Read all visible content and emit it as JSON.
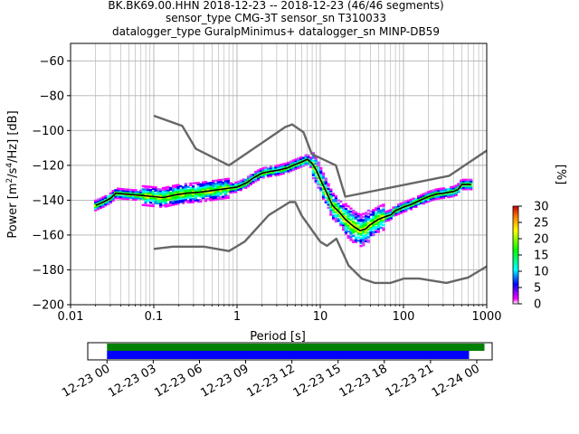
{
  "header": {
    "line1": "BK.BK69.00.HHN   2018-12-23 -- 2018-12-23  (46/46 segments)",
    "line2": "sensor_type CMG-3T sensor_sn T310033",
    "line3": "datalogger_type GuralpMinimus+ datalogger_sn MINP-DB59"
  },
  "chart_data": [
    {
      "type": "heatmap",
      "title": "",
      "xlabel": "Period [s]",
      "ylabel": "Power [m²/s⁴/Hz] [dB]",
      "x_scale": "log",
      "xlim": [
        0.01,
        1000
      ],
      "ylim": [
        -200,
        -50
      ],
      "x_ticks": [
        "0.01",
        "0.1",
        "1",
        "10",
        "100",
        "1000"
      ],
      "y_ticks": [
        "-200",
        "-180",
        "-160",
        "-140",
        "-120",
        "-100",
        "-80",
        "-60"
      ],
      "grid": true,
      "colorbar": {
        "label": "[%]",
        "range": [
          0,
          30
        ],
        "ticks": [
          "0",
          "5",
          "10",
          "15",
          "20",
          "25",
          "30"
        ]
      },
      "colors": {
        "noise_model": "#666666",
        "mean": "#000000"
      },
      "series": [
        {
          "key": "nhnm",
          "x": [
            0.1,
            0.22,
            0.32,
            0.8,
            3.8,
            4.6,
            6.3,
            7.9,
            15.4,
            20,
            354.8,
            1000
          ],
          "y": [
            -91.5,
            -97.4,
            -110.5,
            -120,
            -98,
            -96.5,
            -101,
            -113.5,
            -120,
            -138,
            -126,
            -111.5
          ]
        },
        {
          "key": "nlnm",
          "x": [
            0.1,
            0.17,
            0.4,
            0.8,
            1.24,
            2.4,
            4.3,
            5,
            6,
            10,
            12,
            15.6,
            21.9,
            31.6,
            45,
            70,
            101,
            154,
            328,
            600,
            1000
          ],
          "y": [
            -168,
            -166.7,
            -166.7,
            -169.2,
            -163.7,
            -148.6,
            -141.1,
            -141.1,
            -149,
            -163.8,
            -166.2,
            -162.1,
            -177.5,
            -185,
            -187.5,
            -187.5,
            -185,
            -185,
            -187.5,
            -184.4,
            -178
          ]
        },
        {
          "key": "mean",
          "x": [
            0.02,
            0.025,
            0.03,
            0.035,
            0.045,
            0.06,
            0.08,
            0.1,
            0.13,
            0.18,
            0.25,
            0.35,
            0.5,
            0.7,
            1,
            1.3,
            1.6,
            2,
            2.5,
            3,
            4,
            5,
            6,
            7,
            8,
            9,
            10,
            12,
            14,
            17,
            20,
            25,
            30,
            35,
            40,
            50,
            60,
            70,
            80,
            100,
            130,
            160,
            200,
            250,
            300,
            350,
            400,
            450,
            500,
            550,
            600,
            650
          ],
          "y": [
            -143,
            -141,
            -139,
            -136,
            -136.5,
            -137,
            -137.5,
            -138,
            -138.5,
            -137,
            -136,
            -135.5,
            -134.5,
            -133.5,
            -132.5,
            -130,
            -127,
            -124.5,
            -123.5,
            -123,
            -121.5,
            -119.5,
            -118,
            -116.5,
            -119,
            -123,
            -128,
            -136,
            -143,
            -147,
            -151,
            -155,
            -157.5,
            -156.5,
            -154,
            -151,
            -149.5,
            -148.5,
            -146,
            -144,
            -142,
            -140,
            -138,
            -136.5,
            -136,
            -135.5,
            -135,
            -134,
            -131,
            -131,
            -131,
            -131
          ]
        }
      ]
    },
    {
      "type": "bar",
      "title": "",
      "xlabel": "",
      "ylabel": "",
      "x_ticks": [
        "12-23 00",
        "12-23 03",
        "12-23 06",
        "12-23 09",
        "12-23 12",
        "12-23 15",
        "12-23 18",
        "12-23 21",
        "12-24 00"
      ],
      "xlim_hours": [
        -1.25,
        25
      ],
      "colors": {
        "data_available": "#008000",
        "used_for_psd": "#0000ff"
      },
      "series": [
        {
          "key": "data_available",
          "start_hours": 0,
          "end_hours": 24.5
        },
        {
          "key": "used_for_psd",
          "start_hours": 0,
          "end_hours": 23.5
        }
      ]
    }
  ]
}
